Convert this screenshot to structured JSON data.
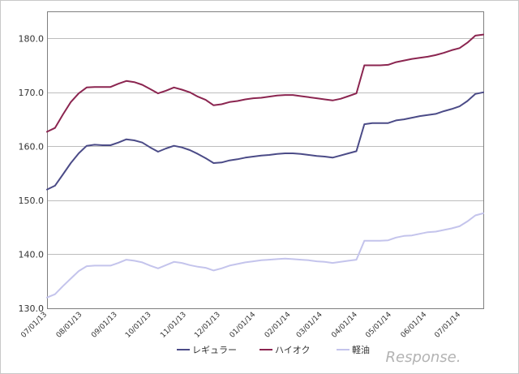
{
  "chart_data": {
    "type": "line",
    "x": [
      "07/01/13",
      "07/08/13",
      "07/15/13",
      "07/22/13",
      "07/29/13",
      "08/05/13",
      "08/12/13",
      "08/19/13",
      "08/26/13",
      "09/02/13",
      "09/09/13",
      "09/16/13",
      "09/23/13",
      "09/30/13",
      "10/07/13",
      "10/14/13",
      "10/21/13",
      "10/28/13",
      "11/04/13",
      "11/11/13",
      "11/18/13",
      "11/25/13",
      "12/02/13",
      "12/09/13",
      "12/16/13",
      "12/23/13",
      "12/30/13",
      "01/06/14",
      "01/13/14",
      "01/20/14",
      "01/27/14",
      "02/03/14",
      "02/10/14",
      "02/17/14",
      "02/24/14",
      "03/03/14",
      "03/10/14",
      "03/17/14",
      "03/24/14",
      "03/31/14",
      "04/07/14",
      "04/14/14",
      "04/21/14",
      "04/28/14",
      "05/05/14",
      "05/12/14",
      "05/19/14",
      "05/26/14",
      "06/02/14",
      "06/09/14",
      "06/16/14",
      "06/23/14",
      "06/30/14",
      "07/07/14",
      "07/14/14",
      "07/21/14"
    ],
    "x_ticks": [
      "07/01/13",
      "08/01/13",
      "09/01/13",
      "10/01/13",
      "11/01/13",
      "12/01/13",
      "01/01/14",
      "02/01/14",
      "03/01/14",
      "04/01/14",
      "05/01/14",
      "06/01/14",
      "07/01/14"
    ],
    "x_tick_index": [
      0,
      4.43,
      8.86,
      13.14,
      17.57,
      21.86,
      26.29,
      30.71,
      34.71,
      39.14,
      43.43,
      47.86,
      52.14
    ],
    "series": [
      {
        "name": "レギュラー",
        "color": "#4b4b87",
        "values": [
          152.0,
          152.7,
          154.8,
          156.9,
          158.7,
          160.1,
          160.3,
          160.2,
          160.2,
          160.7,
          161.3,
          161.1,
          160.7,
          159.8,
          159.0,
          159.6,
          160.1,
          159.8,
          159.3,
          158.6,
          157.8,
          156.9,
          157.0,
          157.4,
          157.6,
          157.9,
          158.1,
          158.3,
          158.4,
          158.6,
          158.7,
          158.7,
          158.6,
          158.4,
          158.2,
          158.1,
          157.9,
          158.3,
          158.7,
          159.1,
          164.1,
          164.3,
          164.3,
          164.3,
          164.8,
          165.0,
          165.3,
          165.6,
          165.8,
          166.0,
          166.5,
          166.9,
          167.4,
          168.4,
          169.7,
          170.0
        ]
      },
      {
        "name": "ハイオク",
        "color": "#8b2550",
        "values": [
          162.7,
          163.4,
          165.9,
          168.2,
          169.8,
          170.9,
          171.0,
          171.0,
          171.0,
          171.6,
          172.1,
          171.9,
          171.4,
          170.6,
          169.8,
          170.3,
          170.9,
          170.5,
          170.0,
          169.2,
          168.6,
          167.6,
          167.8,
          168.2,
          168.4,
          168.7,
          168.9,
          169.0,
          169.2,
          169.4,
          169.5,
          169.5,
          169.3,
          169.1,
          168.9,
          168.7,
          168.5,
          168.8,
          169.3,
          169.8,
          175.0,
          175.0,
          175.0,
          175.1,
          175.6,
          175.9,
          176.2,
          176.4,
          176.6,
          176.9,
          177.3,
          177.8,
          178.2,
          179.2,
          180.5,
          180.7
        ]
      },
      {
        "name": "軽油",
        "color": "#c4c4ec",
        "values": [
          132.0,
          132.6,
          134.1,
          135.5,
          136.9,
          137.8,
          137.9,
          137.9,
          137.9,
          138.4,
          139.0,
          138.8,
          138.5,
          137.9,
          137.4,
          138.0,
          138.6,
          138.4,
          138.0,
          137.7,
          137.5,
          137.0,
          137.4,
          137.9,
          138.2,
          138.5,
          138.7,
          138.9,
          139.0,
          139.1,
          139.2,
          139.1,
          139.0,
          138.9,
          138.7,
          138.6,
          138.4,
          138.6,
          138.8,
          139.0,
          142.5,
          142.5,
          142.5,
          142.6,
          143.1,
          143.4,
          143.5,
          143.8,
          144.1,
          144.2,
          144.5,
          144.8,
          145.2,
          146.1,
          147.2,
          147.6
        ]
      }
    ],
    "title": "",
    "xlabel": "",
    "ylabel": "",
    "ylim": [
      130,
      185
    ],
    "y_ticks": [
      "130.0",
      "140.0",
      "150.0",
      "160.0",
      "170.0",
      "180.0"
    ],
    "grid": true,
    "legend_position": "bottom-center"
  },
  "watermark": "Response."
}
